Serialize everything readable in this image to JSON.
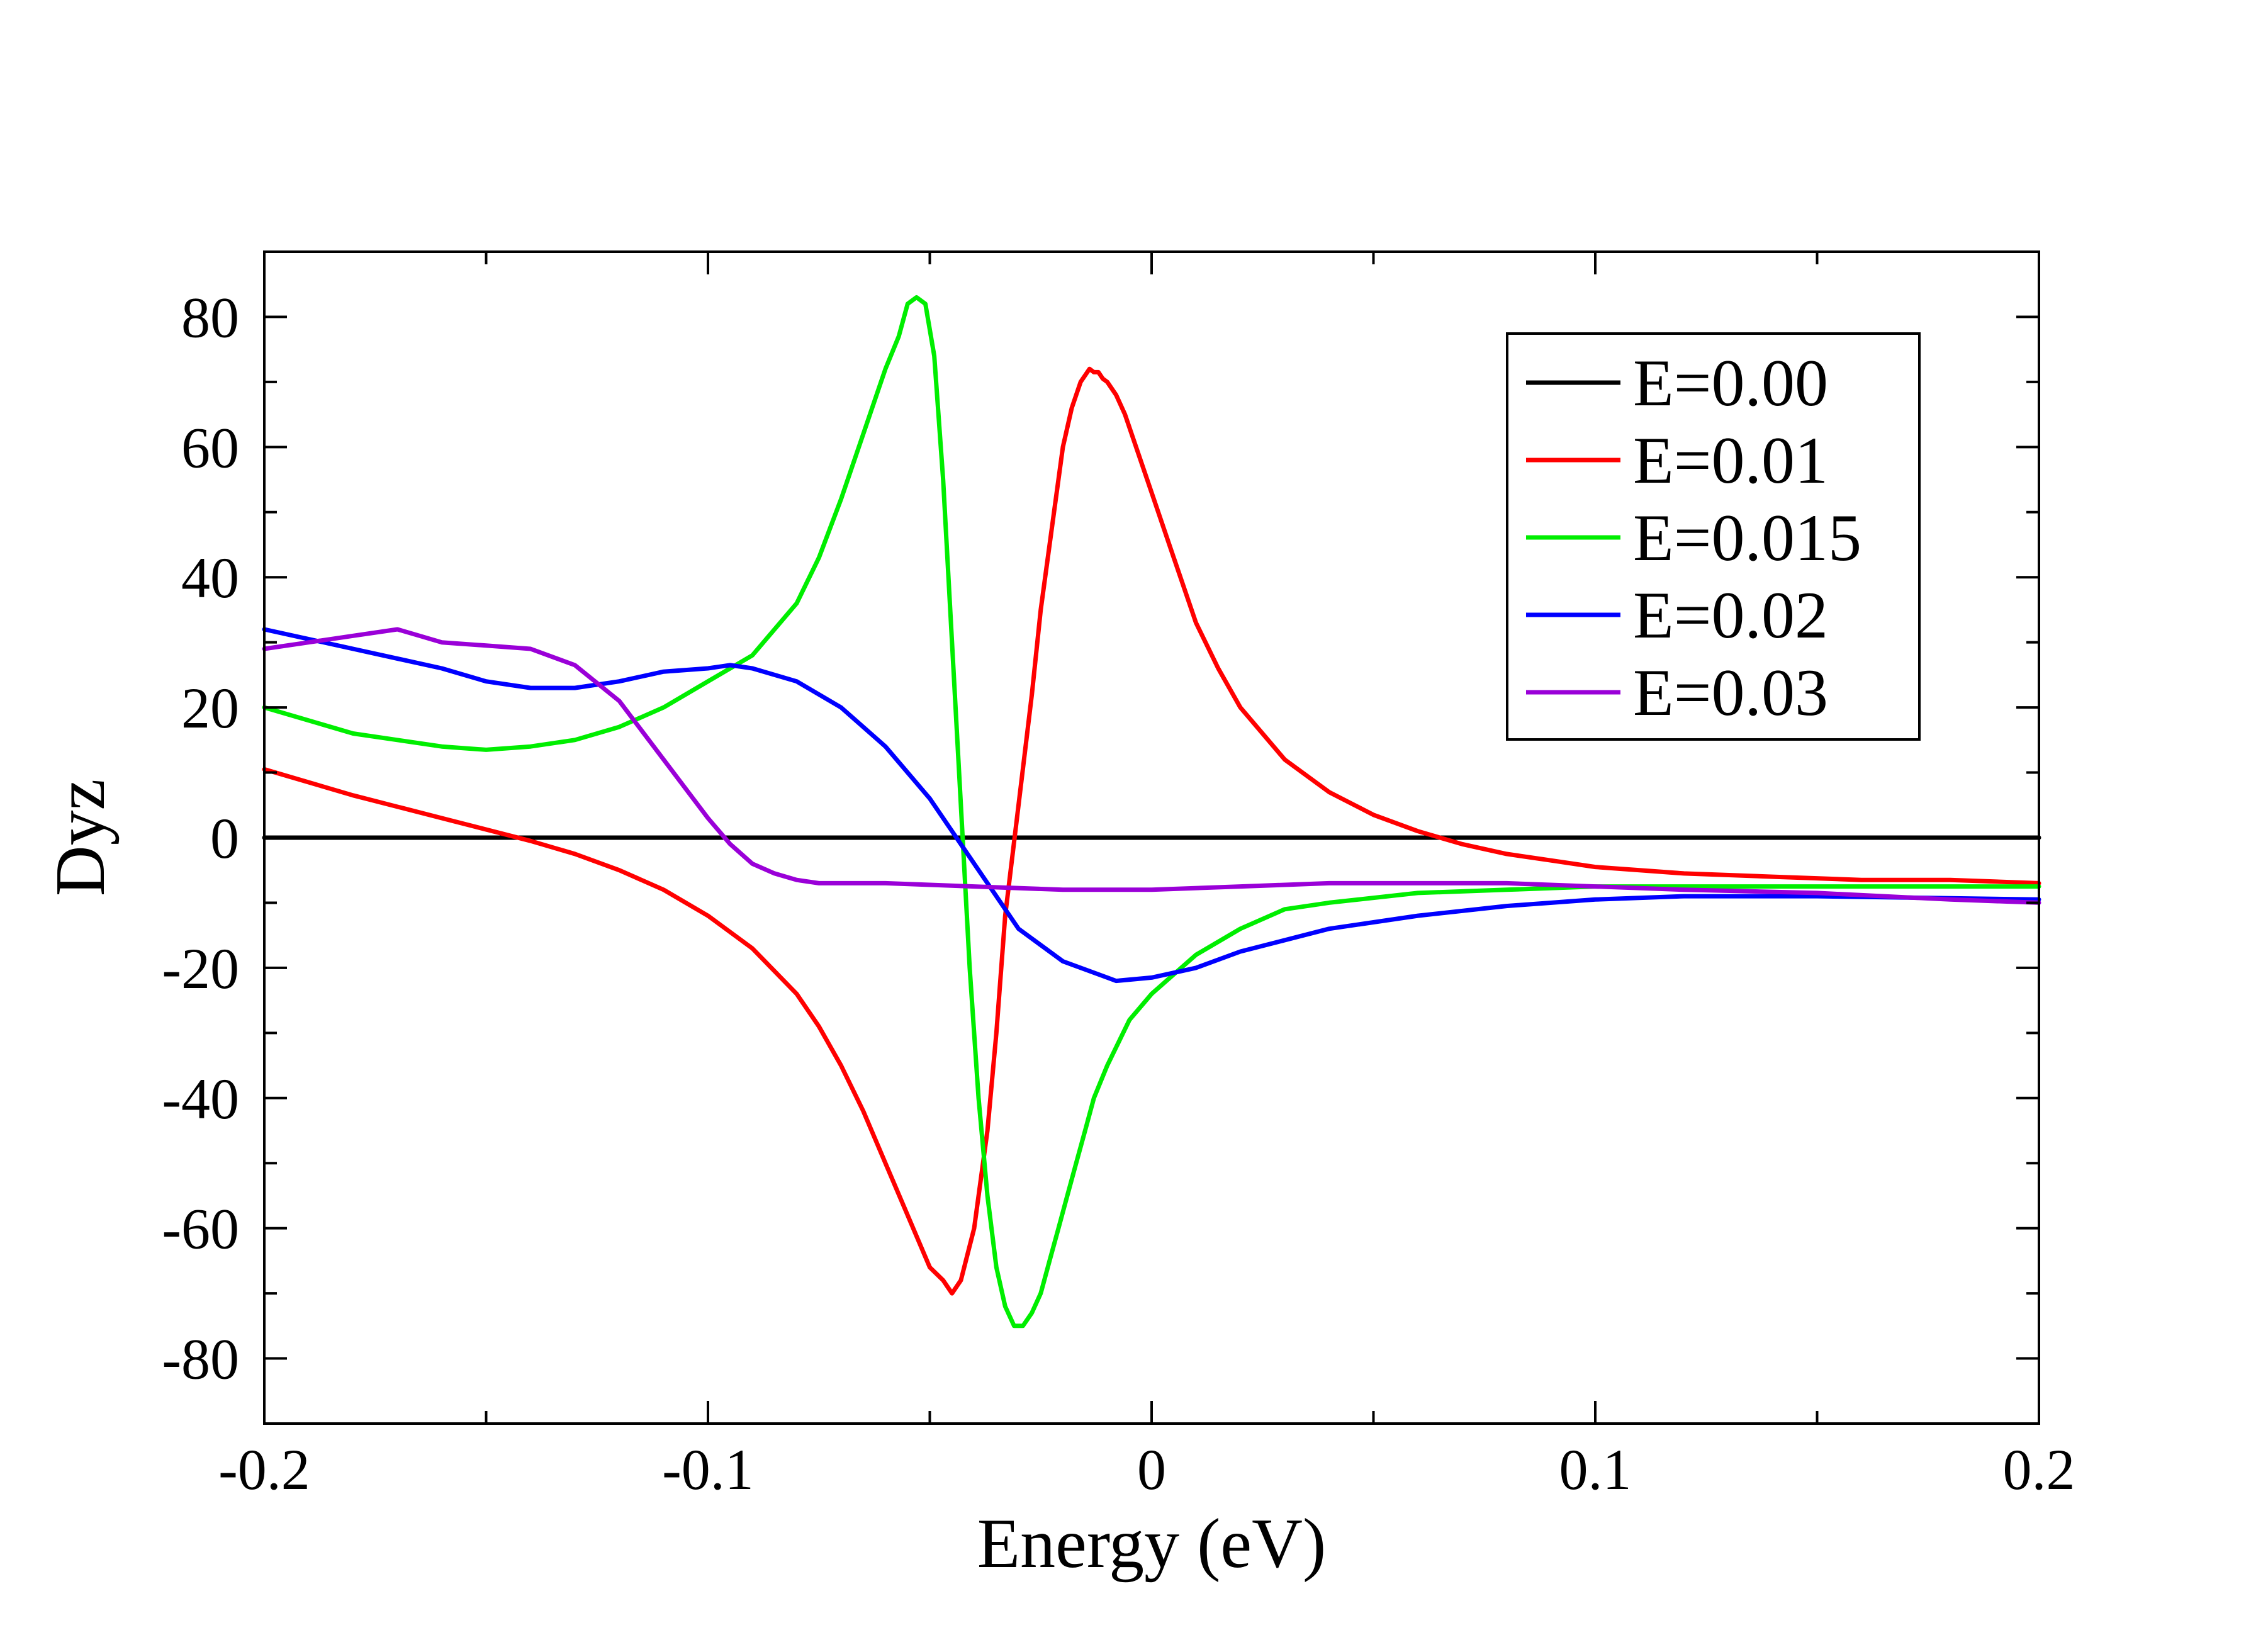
{
  "chart_data": {
    "type": "line",
    "title": "",
    "xlabel": "Energy (eV)",
    "ylabel": "Dyz",
    "xlim": [
      -0.2,
      0.2
    ],
    "ylim": [
      -90,
      90
    ],
    "x_ticks": [
      -0.2,
      -0.1,
      0,
      0.1,
      0.2
    ],
    "x_tick_labels": [
      "-0.2",
      "-0.1",
      "0",
      "0.1",
      "0.2"
    ],
    "y_ticks": [
      -80,
      -60,
      -40,
      -20,
      0,
      20,
      40,
      60,
      80
    ],
    "y_tick_labels": [
      "-80",
      "-60",
      "-40",
      "-20",
      "0",
      "20",
      "40",
      "60",
      "80"
    ],
    "grid": false,
    "legend_position": "top-right",
    "series": [
      {
        "name": "E=0.00",
        "color": "#000000",
        "x": [
          -0.2,
          0.2
        ],
        "y": [
          0,
          0
        ]
      },
      {
        "name": "E=0.01",
        "color": "#ff0000",
        "x": [
          -0.2,
          -0.18,
          -0.16,
          -0.14,
          -0.13,
          -0.12,
          -0.11,
          -0.1,
          -0.09,
          -0.08,
          -0.075,
          -0.07,
          -0.065,
          -0.06,
          -0.055,
          -0.05,
          -0.047,
          -0.045,
          -0.043,
          -0.04,
          -0.037,
          -0.035,
          -0.033,
          -0.03,
          -0.027,
          -0.025,
          -0.022,
          -0.02,
          -0.018,
          -0.016,
          -0.014,
          -0.013,
          -0.012,
          -0.011,
          -0.01,
          -0.008,
          -0.006,
          -0.004,
          -0.002,
          0,
          0.005,
          0.01,
          0.015,
          0.02,
          0.03,
          0.04,
          0.05,
          0.06,
          0.07,
          0.08,
          0.09,
          0.1,
          0.11,
          0.12,
          0.14,
          0.16,
          0.18,
          0.2
        ],
        "y": [
          10.5,
          6.5,
          3,
          -0.5,
          -2.5,
          -5,
          -8,
          -12,
          -17,
          -24,
          -29,
          -35,
          -42,
          -50,
          -58,
          -66,
          -68,
          -70,
          -68,
          -60,
          -45,
          -30,
          -12,
          5,
          22,
          35,
          50,
          60,
          66,
          70,
          72,
          71.5,
          71.5,
          70.5,
          70,
          68,
          65,
          61,
          57,
          53,
          43,
          33,
          26,
          20,
          12,
          7,
          3.5,
          1,
          -1,
          -2.5,
          -3.5,
          -4.5,
          -5,
          -5.5,
          -6,
          -6.5,
          -6.5,
          -7
        ]
      },
      {
        "name": "E=0.015",
        "color": "#00ee00",
        "x": [
          -0.2,
          -0.18,
          -0.16,
          -0.15,
          -0.14,
          -0.13,
          -0.12,
          -0.11,
          -0.1,
          -0.09,
          -0.08,
          -0.075,
          -0.07,
          -0.065,
          -0.06,
          -0.057,
          -0.055,
          -0.053,
          -0.051,
          -0.049,
          -0.047,
          -0.045,
          -0.043,
          -0.041,
          -0.039,
          -0.037,
          -0.035,
          -0.033,
          -0.031,
          -0.029,
          -0.027,
          -0.025,
          -0.023,
          -0.021,
          -0.019,
          -0.017,
          -0.015,
          -0.013,
          -0.01,
          -0.005,
          0,
          0.01,
          0.02,
          0.03,
          0.04,
          0.06,
          0.08,
          0.1,
          0.12,
          0.14,
          0.16,
          0.18,
          0.2
        ],
        "y": [
          20,
          16,
          14,
          13.5,
          14,
          15,
          17,
          20,
          24,
          28,
          36,
          43,
          52,
          62,
          72,
          77,
          82,
          83,
          82,
          74,
          55,
          30,
          5,
          -20,
          -40,
          -55,
          -66,
          -72,
          -75,
          -75,
          -73,
          -70,
          -65,
          -60,
          -55,
          -50,
          -45,
          -40,
          -35,
          -28,
          -24,
          -18,
          -14,
          -11,
          -10,
          -8.5,
          -8,
          -7.5,
          -7.5,
          -7.5,
          -7.5,
          -7.5,
          -7.5
        ]
      },
      {
        "name": "E=0.02",
        "color": "#0000ff",
        "x": [
          -0.2,
          -0.18,
          -0.16,
          -0.15,
          -0.14,
          -0.13,
          -0.12,
          -0.11,
          -0.1,
          -0.095,
          -0.09,
          -0.08,
          -0.07,
          -0.06,
          -0.05,
          -0.045,
          -0.04,
          -0.035,
          -0.03,
          -0.02,
          -0.01,
          -0.008,
          0,
          0.01,
          0.02,
          0.04,
          0.06,
          0.08,
          0.1,
          0.12,
          0.15,
          0.2
        ],
        "y": [
          32,
          29,
          26,
          24,
          23,
          23,
          24,
          25.5,
          26,
          26.5,
          26,
          24,
          20,
          14,
          6,
          1,
          -4,
          -9,
          -14,
          -19,
          -21.5,
          -22,
          -21.5,
          -20,
          -17.5,
          -14,
          -12,
          -10.5,
          -9.5,
          -9,
          -9,
          -9.5
        ]
      },
      {
        "name": "E=0.03",
        "color": "#9a00d8",
        "x": [
          -0.2,
          -0.19,
          -0.18,
          -0.17,
          -0.165,
          -0.16,
          -0.15,
          -0.14,
          -0.13,
          -0.12,
          -0.11,
          -0.1,
          -0.095,
          -0.09,
          -0.085,
          -0.08,
          -0.075,
          -0.07,
          -0.06,
          -0.04,
          -0.02,
          0,
          0.02,
          0.04,
          0.06,
          0.08,
          0.1,
          0.12,
          0.15,
          0.18,
          0.2
        ],
        "y": [
          29,
          30,
          31,
          32,
          31,
          30,
          29.5,
          29,
          26.5,
          21,
          12,
          3,
          -1,
          -4,
          -5.5,
          -6.5,
          -7,
          -7,
          -7,
          -7.5,
          -8,
          -8,
          -7.5,
          -7,
          -7,
          -7,
          -7.5,
          -8,
          -8.5,
          -9.5,
          -10
        ]
      }
    ]
  }
}
